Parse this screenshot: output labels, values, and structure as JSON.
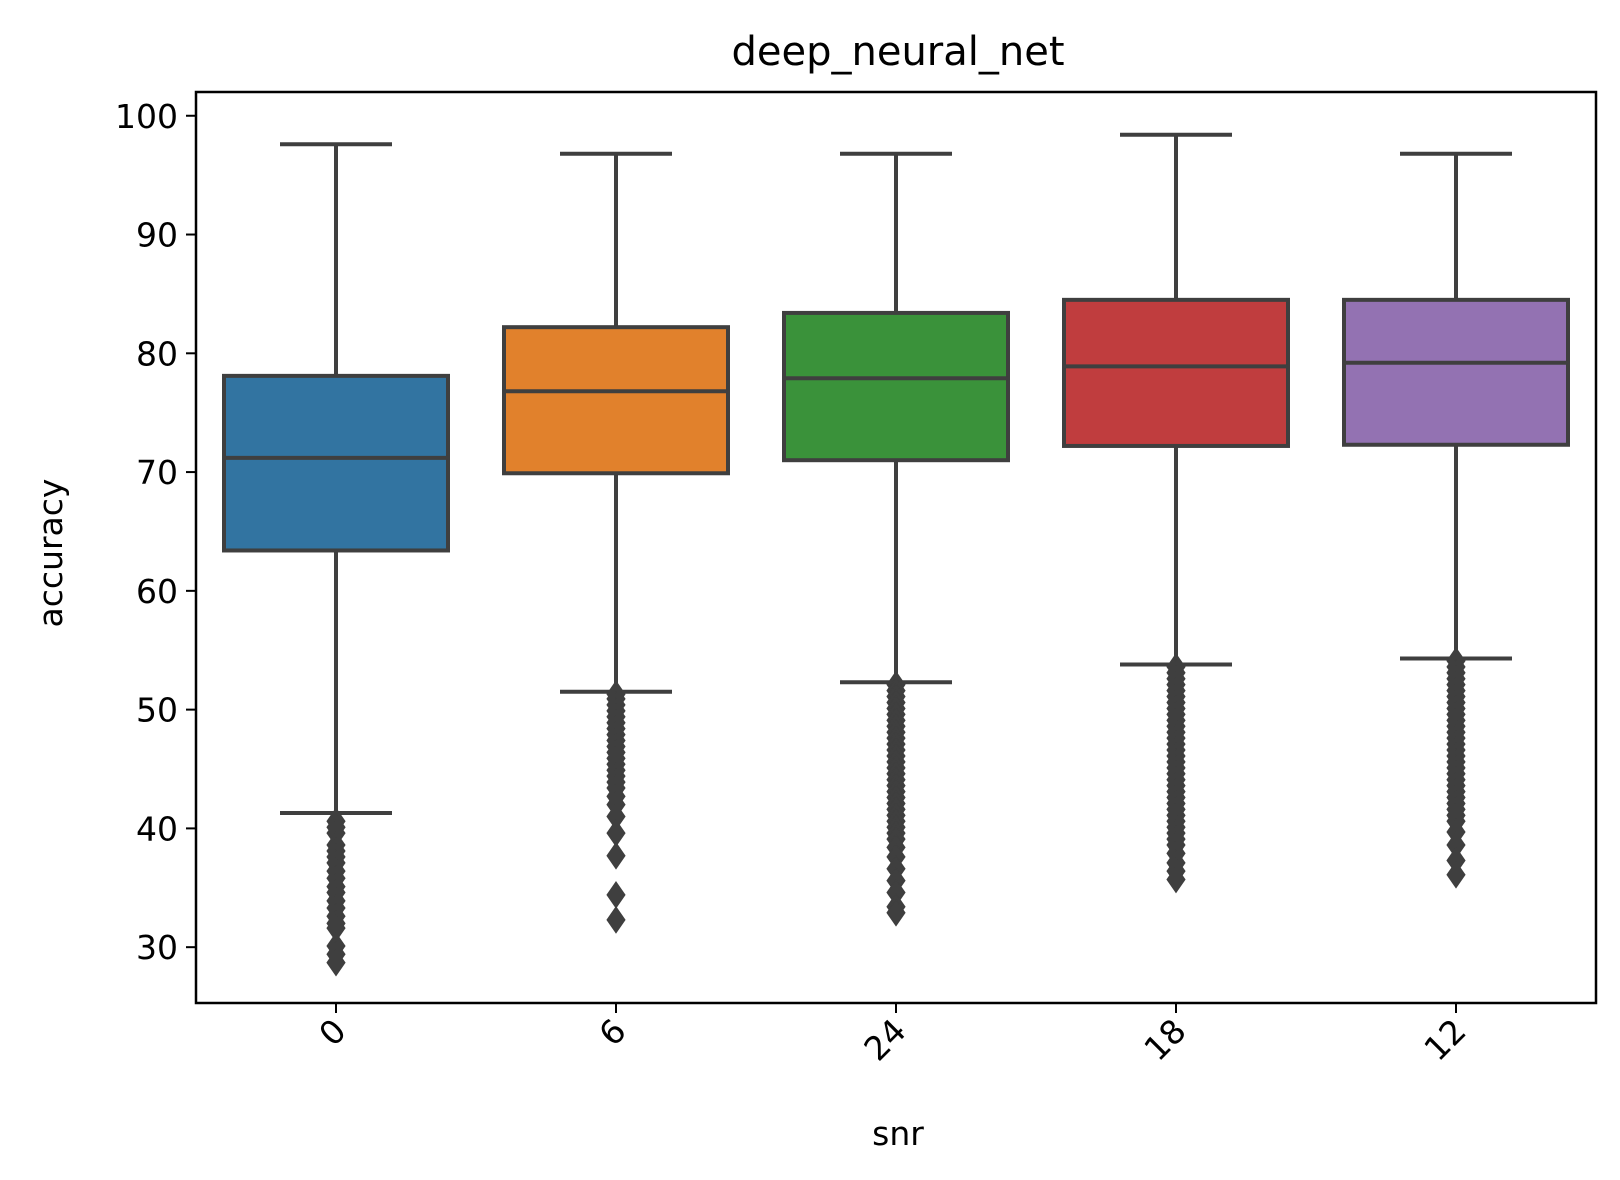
{
  "chart_data": {
    "type": "box",
    "title": "deep_neural_net",
    "xlabel": "snr",
    "ylabel": "accuracy",
    "ylim": [
      25.3,
      102.0
    ],
    "yticks": [
      30,
      40,
      50,
      60,
      70,
      80,
      90,
      100
    ],
    "x_tick_rotation_deg": 45,
    "grid": false,
    "legend": "none",
    "categories": [
      "0",
      "6",
      "24",
      "18",
      "12"
    ],
    "boxes": [
      {
        "category": "0",
        "color": "#3274a1",
        "whisker_low": 41.3,
        "q1": 63.4,
        "median": 71.2,
        "q3": 78.1,
        "whisker_high": 97.6,
        "outliers": [
          40.6,
          40.1,
          39.6,
          38.6,
          38.1,
          37.6,
          37.1,
          36.4,
          35.8,
          35.1,
          34.6,
          33.9,
          33.3,
          32.6,
          32.0,
          31.6,
          30.1,
          29.4,
          28.7
        ]
      },
      {
        "category": "6",
        "color": "#e1812c",
        "whisker_low": 51.5,
        "q1": 69.9,
        "median": 76.8,
        "q3": 82.2,
        "whisker_high": 96.8,
        "outliers": [
          51.3,
          50.9,
          50.4,
          49.9,
          49.4,
          48.9,
          48.4,
          47.9,
          47.4,
          46.9,
          46.4,
          45.9,
          45.4,
          44.9,
          44.4,
          43.9,
          43.4,
          42.7,
          42.0,
          41.0,
          39.6,
          37.7,
          34.4,
          32.3
        ]
      },
      {
        "category": "24",
        "color": "#3a923a",
        "whisker_low": 52.3,
        "q1": 71.0,
        "median": 77.9,
        "q3": 83.4,
        "whisker_high": 96.8,
        "outliers": [
          52.1,
          51.6,
          51.1,
          50.6,
          50.1,
          49.6,
          49.1,
          48.6,
          48.1,
          47.6,
          47.1,
          46.6,
          46.1,
          45.6,
          45.1,
          44.6,
          44.1,
          43.6,
          43.1,
          42.6,
          42.1,
          41.6,
          41.1,
          40.6,
          40.1,
          39.6,
          39.1,
          38.4,
          37.6,
          36.6,
          35.6,
          34.6,
          33.4,
          32.9
        ]
      },
      {
        "category": "18",
        "color": "#c03d3e",
        "whisker_low": 53.8,
        "q1": 72.2,
        "median": 78.9,
        "q3": 84.5,
        "whisker_high": 98.4,
        "outliers": [
          53.6,
          53.1,
          52.6,
          52.1,
          51.6,
          51.1,
          50.6,
          50.1,
          49.6,
          49.1,
          48.6,
          48.1,
          47.6,
          47.1,
          46.6,
          46.1,
          45.6,
          45.1,
          44.6,
          44.1,
          43.6,
          43.1,
          42.6,
          42.1,
          41.6,
          41.1,
          40.6,
          40.1,
          39.6,
          39.1,
          38.6,
          37.9,
          37.1,
          36.4,
          35.7
        ]
      },
      {
        "category": "12",
        "color": "#9372b2",
        "whisker_low": 54.3,
        "q1": 72.3,
        "median": 79.2,
        "q3": 84.5,
        "whisker_high": 96.8,
        "outliers": [
          54.1,
          53.6,
          53.1,
          52.6,
          52.1,
          51.6,
          51.1,
          50.6,
          50.1,
          49.6,
          49.1,
          48.6,
          48.1,
          47.6,
          47.1,
          46.6,
          46.1,
          45.6,
          45.1,
          44.6,
          44.1,
          43.6,
          43.1,
          42.6,
          42.1,
          41.6,
          41.1,
          40.6,
          39.7,
          38.6,
          37.3,
          36.1
        ]
      }
    ],
    "line_color": "#3f3f3f"
  }
}
